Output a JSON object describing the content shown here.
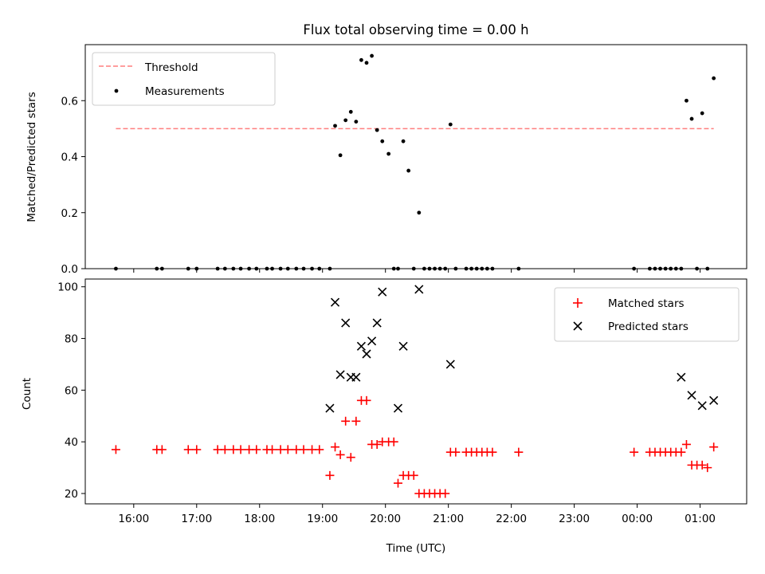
{
  "figure": {
    "title": "Flux total observing time = 0.00 h",
    "xlabel": "Time (UTC)",
    "x_tick_labels": [
      "16:00",
      "17:00",
      "18:00",
      "19:00",
      "20:00",
      "21:00",
      "22:00",
      "23:00",
      "00:00",
      "01:00"
    ]
  },
  "chart_data": [
    {
      "type": "scatter",
      "panel": "top",
      "ylabel": "Matched/Predicted stars",
      "ylim": [
        0,
        0.8
      ],
      "y_ticks": [
        0.0,
        0.2,
        0.4,
        0.6
      ],
      "y_tick_labels": [
        "0.0",
        "0.2",
        "0.4",
        "0.6"
      ],
      "xlim_hours": [
        15.23,
        25.74
      ],
      "legend": {
        "placement": "top-left",
        "entries": [
          "Threshold",
          "Measurements"
        ]
      },
      "threshold": {
        "name": "Threshold",
        "value": 0.5,
        "x_start": "15:43",
        "x_end": "01:13",
        "color": "#ff7f7f",
        "style": "dashed"
      },
      "series": [
        {
          "name": "Measurements",
          "color": "#000000",
          "x": [
            "15:43",
            "16:22",
            "16:27",
            "16:52",
            "17:00",
            "17:20",
            "17:27",
            "17:35",
            "17:42",
            "17:50",
            "17:57",
            "18:07",
            "18:12",
            "18:20",
            "18:27",
            "18:35",
            "18:42",
            "18:50",
            "18:57",
            "19:07",
            "19:12",
            "19:17",
            "19:22",
            "19:27",
            "19:32",
            "19:37",
            "19:42",
            "19:47",
            "19:52",
            "19:57",
            "20:03",
            "20:08",
            "20:12",
            "20:17",
            "20:22",
            "20:27",
            "20:32",
            "20:37",
            "20:42",
            "20:47",
            "20:52",
            "20:57",
            "21:02",
            "21:07",
            "21:17",
            "21:22",
            "21:27",
            "21:32",
            "21:37",
            "21:42",
            "22:07",
            "23:57",
            "00:12",
            "00:17",
            "00:22",
            "00:27",
            "00:32",
            "00:37",
            "00:42",
            "00:47",
            "00:52",
            "00:57",
            "01:02",
            "01:07",
            "01:13"
          ],
          "y": [
            0,
            0,
            0,
            0,
            0,
            0,
            0,
            0,
            0,
            0,
            0,
            0,
            0,
            0,
            0,
            0,
            0,
            0,
            0,
            0,
            0.51,
            0.405,
            0.53,
            0.56,
            0.525,
            0.745,
            0.735,
            0.76,
            0.495,
            0.455,
            0.41,
            0,
            0,
            0.455,
            0.35,
            0,
            0.2,
            0,
            0,
            0,
            0,
            0,
            0.515,
            0,
            0,
            0,
            0,
            0,
            0,
            0,
            0,
            0,
            0,
            0,
            0,
            0,
            0,
            0,
            0,
            0.6,
            0.535,
            0,
            0.555,
            0,
            0.68
          ]
        }
      ]
    },
    {
      "type": "scatter",
      "panel": "bottom",
      "ylabel": "Count",
      "ylim": [
        16,
        103
      ],
      "y_ticks": [
        20,
        40,
        60,
        80,
        100
      ],
      "y_tick_labels": [
        "20",
        "40",
        "60",
        "80",
        "100"
      ],
      "xlim_hours": [
        15.23,
        25.74
      ],
      "legend": {
        "placement": "top-right",
        "entries": [
          "Matched stars",
          "Predicted stars"
        ]
      },
      "series": [
        {
          "name": "Matched stars",
          "marker": "plus",
          "color": "#ff0000",
          "x": [
            "15:43",
            "16:22",
            "16:27",
            "16:52",
            "17:00",
            "17:20",
            "17:27",
            "17:35",
            "17:42",
            "17:50",
            "17:57",
            "18:07",
            "18:12",
            "18:20",
            "18:27",
            "18:35",
            "18:42",
            "18:50",
            "18:57",
            "19:07",
            "19:12",
            "19:17",
            "19:22",
            "19:27",
            "19:32",
            "19:37",
            "19:42",
            "19:47",
            "19:52",
            "19:57",
            "20:03",
            "20:08",
            "20:12",
            "20:17",
            "20:22",
            "20:27",
            "20:32",
            "20:37",
            "20:42",
            "20:47",
            "20:52",
            "20:57",
            "21:02",
            "21:07",
            "21:17",
            "21:22",
            "21:27",
            "21:32",
            "21:37",
            "21:42",
            "22:07",
            "23:57",
            "00:12",
            "00:17",
            "00:22",
            "00:27",
            "00:32",
            "00:37",
            "00:42",
            "00:47",
            "00:52",
            "00:57",
            "01:02",
            "01:07",
            "01:13"
          ],
          "y": [
            37,
            37,
            37,
            37,
            37,
            37,
            37,
            37,
            37,
            37,
            37,
            37,
            37,
            37,
            37,
            37,
            37,
            37,
            37,
            27,
            38,
            35,
            48,
            34,
            48,
            56,
            56,
            39,
            39,
            40,
            40,
            40,
            24,
            27,
            27,
            27,
            20,
            20,
            20,
            20,
            20,
            20,
            36,
            36,
            36,
            36,
            36,
            36,
            36,
            36,
            36,
            36,
            36,
            36,
            36,
            36,
            36,
            36,
            36,
            39,
            31,
            31,
            31,
            30,
            38
          ]
        },
        {
          "name": "Predicted stars",
          "marker": "x",
          "color": "#000000",
          "x": [
            "19:07",
            "19:12",
            "19:17",
            "19:22",
            "19:27",
            "19:32",
            "19:37",
            "19:42",
            "19:47",
            "19:52",
            "19:57",
            "20:12",
            "20:17",
            "20:32",
            "21:02",
            "00:42",
            "00:52",
            "01:02",
            "01:13"
          ],
          "y": [
            53,
            94,
            66,
            86,
            65,
            65,
            77,
            74,
            79,
            86,
            98,
            53,
            77,
            99,
            70,
            65,
            58,
            54,
            56
          ]
        }
      ]
    }
  ]
}
